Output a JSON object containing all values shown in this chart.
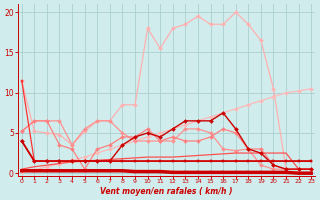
{
  "xlabel": "Vent moyen/en rafales ( km/h )",
  "bg_color": "#d0ecec",
  "grid_color": "#aad0d0",
  "xlim": [
    -0.3,
    23.3
  ],
  "ylim": [
    -0.3,
    21
  ],
  "yticks": [
    0,
    5,
    10,
    15,
    20
  ],
  "xticks": [
    0,
    1,
    2,
    3,
    4,
    5,
    6,
    7,
    8,
    9,
    10,
    11,
    12,
    13,
    14,
    15,
    16,
    17,
    18,
    19,
    20,
    21,
    22,
    23
  ],
  "series": [
    {
      "x": [
        0,
        1,
        2,
        3,
        4,
        5,
        6,
        7,
        8,
        9,
        10,
        11,
        12,
        13,
        14,
        15,
        16,
        17,
        18,
        19,
        20,
        21,
        22,
        23
      ],
      "y": [
        11.5,
        5.2,
        5.0,
        4.8,
        3.5,
        5.2,
        6.5,
        6.5,
        8.5,
        8.5,
        18.0,
        15.5,
        18.0,
        18.5,
        19.5,
        18.5,
        18.5,
        20.0,
        18.5,
        16.5,
        10.5,
        0.5,
        0.5,
        0.5
      ],
      "color": "#ffb0b0",
      "lw": 0.9,
      "marker": "D",
      "ms": 2.0
    },
    {
      "x": [
        0,
        1,
        2,
        3,
        4,
        5,
        6,
        7,
        8,
        9,
        10,
        11,
        12,
        13,
        14,
        15,
        16,
        17,
        18,
        19,
        20,
        21,
        22,
        23
      ],
      "y": [
        0.2,
        0.4,
        0.8,
        1.2,
        1.6,
        2.0,
        2.5,
        3.0,
        3.5,
        4.0,
        4.5,
        5.0,
        5.5,
        6.0,
        6.5,
        7.0,
        7.5,
        8.0,
        8.5,
        9.0,
        9.5,
        10.0,
        10.2,
        10.5
      ],
      "color": "#ffb8b8",
      "lw": 0.9,
      "marker": "D",
      "ms": 2.0
    },
    {
      "x": [
        0,
        1,
        2,
        3,
        4,
        5,
        6,
        7,
        8,
        9,
        10,
        11,
        12,
        13,
        14,
        15,
        16,
        17,
        18,
        19,
        20,
        21,
        22,
        23
      ],
      "y": [
        5.2,
        6.5,
        6.5,
        6.5,
        3.5,
        5.5,
        6.5,
        6.5,
        5.0,
        4.0,
        4.0,
        4.0,
        4.0,
        5.5,
        5.5,
        5.0,
        3.0,
        2.8,
        3.0,
        1.0,
        0.5,
        0.5,
        0.5,
        0.5
      ],
      "color": "#ff9090",
      "lw": 0.9,
      "marker": "D",
      "ms": 2.0
    },
    {
      "x": [
        0,
        1,
        2,
        3,
        4,
        5,
        6,
        7,
        8,
        9,
        10,
        11,
        12,
        13,
        14,
        15,
        16,
        17,
        18,
        19,
        20,
        21,
        22,
        23
      ],
      "y": [
        5.2,
        6.5,
        6.5,
        3.5,
        3.0,
        0.5,
        3.0,
        3.5,
        4.5,
        4.5,
        5.5,
        4.0,
        4.5,
        4.0,
        4.0,
        4.5,
        5.5,
        5.0,
        3.0,
        3.0,
        1.0,
        0.5,
        0.5,
        0.5
      ],
      "color": "#ff8080",
      "lw": 0.9,
      "marker": "D",
      "ms": 2.0
    },
    {
      "x": [
        0,
        1,
        2,
        3,
        4,
        5,
        6,
        7,
        8,
        9,
        10,
        11,
        12,
        13,
        14,
        15,
        16,
        17,
        18,
        19,
        20,
        21,
        22,
        23
      ],
      "y": [
        0.5,
        0.8,
        1.0,
        1.2,
        1.4,
        1.5,
        1.6,
        1.7,
        1.8,
        1.9,
        2.0,
        2.0,
        2.0,
        2.1,
        2.2,
        2.3,
        2.4,
        2.5,
        2.5,
        2.5,
        2.5,
        2.5,
        0.5,
        0.5
      ],
      "color": "#ff5050",
      "lw": 0.9,
      "marker": null,
      "ms": 0
    },
    {
      "x": [
        0,
        1,
        2,
        3,
        4,
        5,
        6,
        7,
        8,
        9,
        10,
        11,
        12,
        13,
        14,
        15,
        16,
        17,
        18,
        19,
        20,
        21,
        22,
        23
      ],
      "y": [
        4.0,
        1.5,
        1.5,
        1.5,
        1.5,
        1.5,
        1.5,
        1.5,
        3.5,
        4.5,
        5.0,
        4.5,
        5.5,
        6.5,
        6.5,
        6.5,
        7.5,
        5.5,
        3.0,
        2.5,
        1.0,
        0.5,
        0.5,
        0.5
      ],
      "color": "#cc0000",
      "lw": 1.0,
      "marker": "D",
      "ms": 2.0
    },
    {
      "x": [
        0,
        1,
        2,
        3,
        4,
        5,
        6,
        7,
        8,
        9,
        10,
        11,
        12,
        13,
        14,
        15,
        16,
        17,
        18,
        19,
        20,
        21,
        22,
        23
      ],
      "y": [
        11.5,
        1.5,
        1.5,
        1.5,
        1.5,
        1.5,
        1.5,
        1.5,
        1.5,
        1.5,
        1.5,
        1.5,
        1.5,
        1.5,
        1.5,
        1.5,
        1.5,
        1.5,
        1.5,
        1.5,
        1.5,
        1.5,
        1.5,
        1.5
      ],
      "color": "#ff3333",
      "lw": 0.9,
      "marker": "s",
      "ms": 1.8
    },
    {
      "x": [
        0,
        1,
        2,
        3,
        4,
        5,
        6,
        7,
        8,
        9,
        10,
        11,
        12,
        13,
        14,
        15,
        16,
        17,
        18,
        19,
        20,
        21,
        22,
        23
      ],
      "y": [
        4.0,
        1.5,
        1.5,
        1.5,
        1.5,
        1.5,
        1.5,
        1.5,
        1.5,
        1.5,
        1.5,
        1.5,
        1.5,
        1.5,
        1.5,
        1.5,
        1.5,
        1.5,
        1.5,
        1.5,
        1.5,
        1.5,
        1.5,
        1.5
      ],
      "color": "#cc0000",
      "lw": 1.2,
      "marker": "s",
      "ms": 1.8
    },
    {
      "x": [
        0,
        1,
        2,
        3,
        4,
        5,
        6,
        7,
        8,
        9,
        10,
        11,
        12,
        13,
        14,
        15,
        16,
        17,
        18,
        19,
        20,
        21,
        22,
        23
      ],
      "y": [
        0.3,
        0.3,
        0.3,
        0.3,
        0.3,
        0.3,
        0.3,
        0.3,
        0.3,
        0.2,
        0.2,
        0.2,
        0.1,
        0.1,
        0.1,
        0.1,
        0.1,
        0.1,
        0.1,
        0.1,
        0.1,
        0.1,
        0.0,
        0.0
      ],
      "color": "#cc0000",
      "lw": 2.5,
      "marker": "s",
      "ms": 1.8
    }
  ]
}
